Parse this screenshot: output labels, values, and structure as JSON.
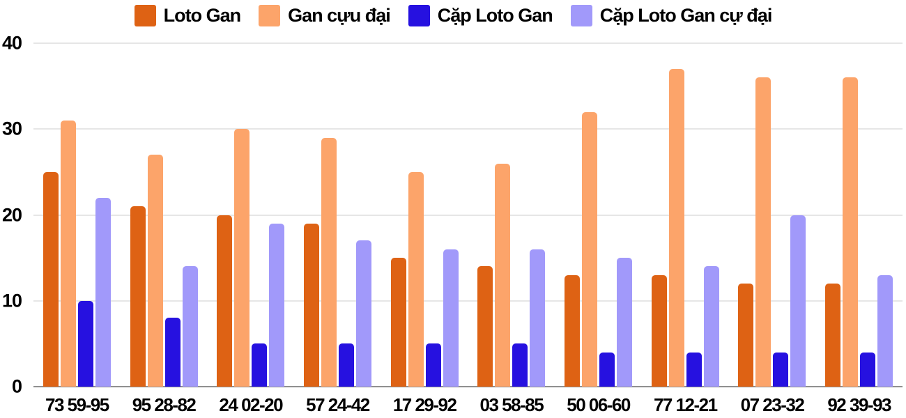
{
  "chart_data": {
    "type": "bar",
    "title": "",
    "xlabel": "",
    "ylabel": "",
    "ylim": [
      0,
      40
    ],
    "yticks": [
      0,
      10,
      20,
      30,
      40
    ],
    "grid": true,
    "legend_position": "top",
    "categories": [
      "73 59-95",
      "95 28-82",
      "24 02-20",
      "57 24-42",
      "17 29-92",
      "03 58-85",
      "50 06-60",
      "77 12-21",
      "07 23-32",
      "92 39-93"
    ],
    "series": [
      {
        "name": "Loto Gan",
        "color": "#DE6214",
        "values": [
          25,
          21,
          20,
          19,
          15,
          14,
          13,
          13,
          12,
          12
        ]
      },
      {
        "name": "Gan cựu đại",
        "color": "#FCA46A",
        "values": [
          31,
          27,
          30,
          29,
          25,
          26,
          32,
          37,
          36,
          36
        ]
      },
      {
        "name": "Cặp Loto Gan",
        "color": "#2611E0",
        "values": [
          10,
          8,
          5,
          5,
          5,
          5,
          4,
          4,
          4,
          4
        ]
      },
      {
        "name": "Cặp Loto Gan cự đại",
        "color": "#A199FA",
        "values": [
          22,
          14,
          19,
          17,
          16,
          16,
          15,
          14,
          20,
          13
        ]
      }
    ]
  },
  "style": {
    "background": "#ffffff",
    "grid_color": "#e6e6e6",
    "baseline_color": "#8f8f8f",
    "text_color": "#000000"
  }
}
